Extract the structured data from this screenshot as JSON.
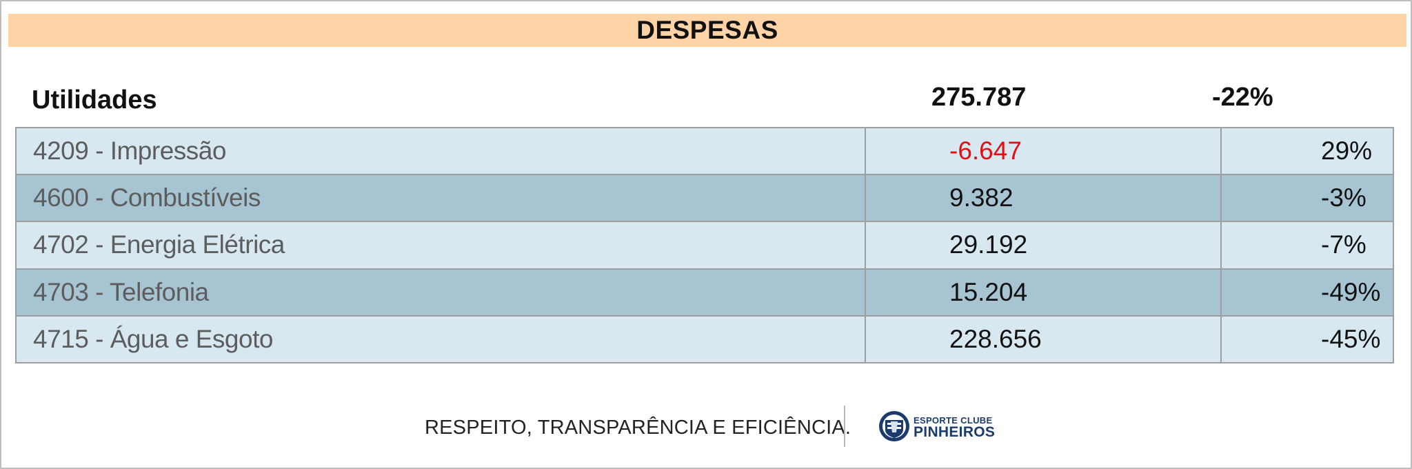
{
  "title": "DESPESAS",
  "summary": {
    "label": "Utilidades",
    "value": "275.787",
    "pct": "-22%"
  },
  "rows": [
    {
      "name": "4209 - Impressão",
      "value": "-6.647",
      "pct": "29%"
    },
    {
      "name": "4600 - Combustíveis",
      "value": "9.382",
      "pct": "-3%"
    },
    {
      "name": "4702 - Energia Elétrica",
      "value": "29.192",
      "pct": "-7%"
    },
    {
      "name": "4703 - Telefonia",
      "value": "15.204",
      "pct": "-49%"
    },
    {
      "name": "4715 - Água e Esgoto",
      "value": "228.656",
      "pct": "-45%"
    }
  ],
  "footer": {
    "tagline": "RESPEITO, TRANSPARÊNCIA E EFICIÊNCIA.",
    "brand_top": "ESPORTE CLUBE",
    "brand_main": "PINHEIROS",
    "logo_icon": "club-crest-icon"
  },
  "colors": {
    "title_bar": "#fed3a5",
    "row_light": "#d7e8f1",
    "row_dark": "#a6c4d2",
    "negative_value": "#e10e16",
    "brand": "#1b3b6f"
  }
}
